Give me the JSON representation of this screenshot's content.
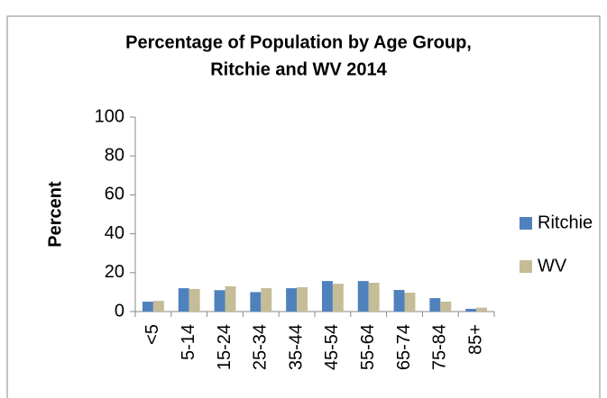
{
  "chart_data": {
    "type": "bar",
    "title": [
      "Percentage of Population by Age Group,",
      "Ritchie and WV 2014"
    ],
    "y_label": "Percent",
    "categories": [
      "<5",
      "5-14",
      "15-24",
      "25-34",
      "35-44",
      "45-54",
      "55-64",
      "65-74",
      "75-84",
      "85+"
    ],
    "series": [
      {
        "name": "Ritchie",
        "color": "#4f81bd",
        "values": [
          5.1,
          12,
          11,
          10,
          12,
          15.7,
          15.7,
          11.1,
          6.9,
          1.4
        ]
      },
      {
        "name": "WV",
        "color": "#c4bd97",
        "values": [
          5.5,
          11.6,
          13,
          12,
          12.5,
          14.3,
          14.8,
          9.7,
          5.1,
          2
        ]
      }
    ],
    "ylim": [
      0,
      100
    ],
    "yticks": [
      0,
      20,
      40,
      60,
      80,
      100
    ],
    "grid": false,
    "legend": "right"
  }
}
